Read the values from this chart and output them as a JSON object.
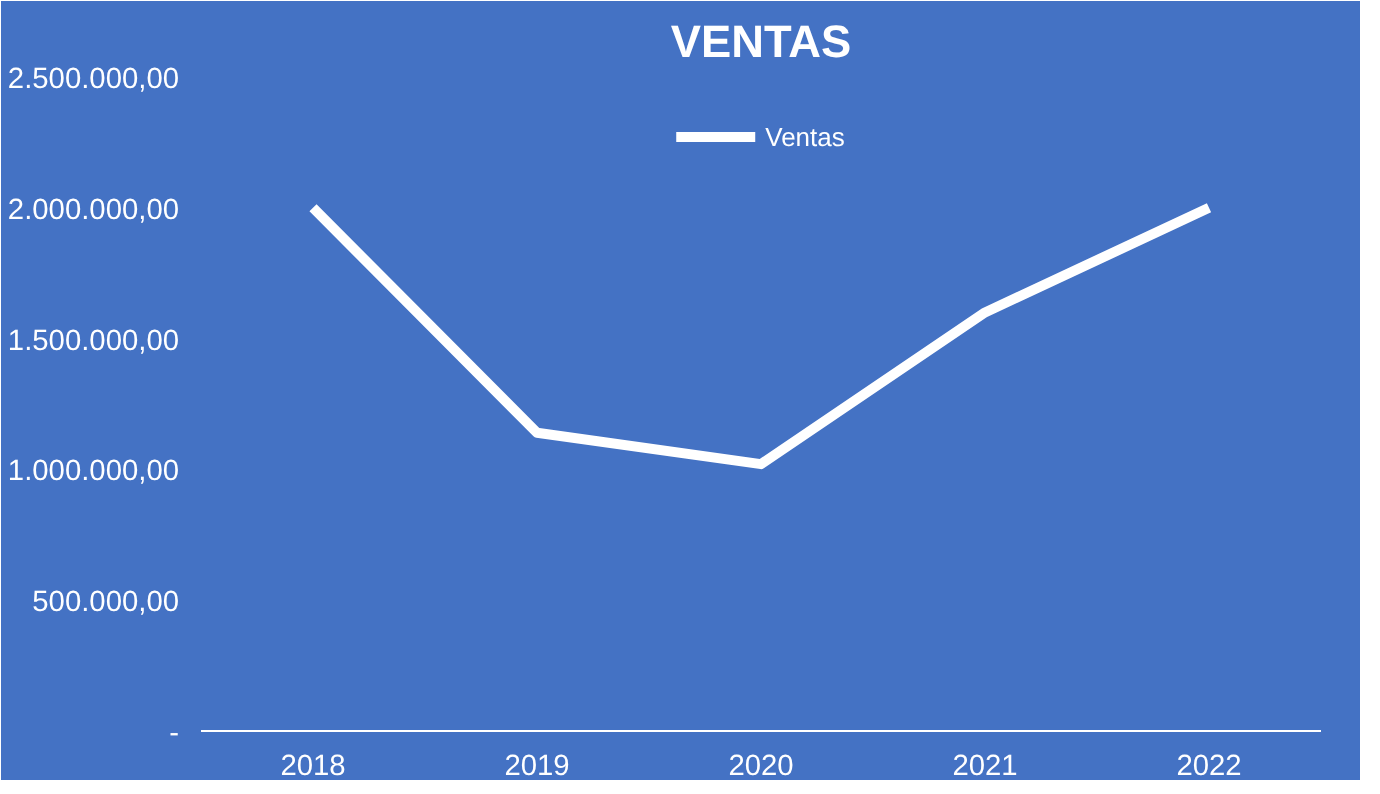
{
  "chart_data": {
    "type": "line",
    "title": "VENTAS",
    "categories": [
      "2018",
      "2019",
      "2020",
      "2021",
      "2022"
    ],
    "series": [
      {
        "name": "Ventas",
        "color": "#ffffff",
        "values": [
          2000000,
          1140000,
          1020000,
          1600000,
          2000000
        ]
      }
    ],
    "ylim": [
      0,
      2500000
    ],
    "yticks": [
      {
        "value": 0,
        "label": "-"
      },
      {
        "value": 500000,
        "label": "500.000,00"
      },
      {
        "value": 1000000,
        "label": "1.000.000,00"
      },
      {
        "value": 1500000,
        "label": "1.500.000,00"
      },
      {
        "value": 2000000,
        "label": "2.000.000,00"
      },
      {
        "value": 2500000,
        "label": "2.500.000,00"
      }
    ],
    "grid": false,
    "legend": "top",
    "marker": "none",
    "line_style": "solid"
  }
}
